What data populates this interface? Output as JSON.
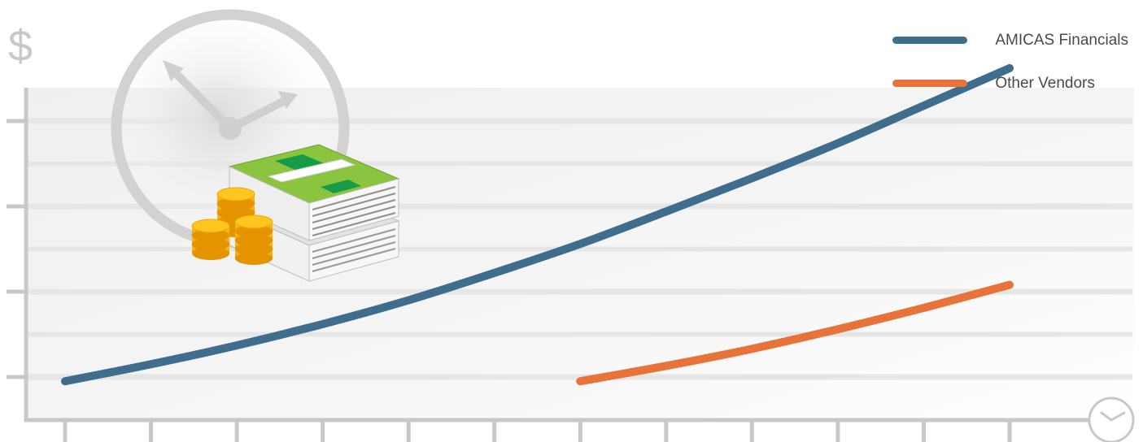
{
  "chart_data": {
    "type": "line",
    "y_axis_symbol": "$",
    "x_axis_icon": "clock-icon",
    "decoration_icons": [
      "wall-clock-icon",
      "money-stack-icon",
      "gold-coins-icon"
    ],
    "x": [
      1,
      2,
      3,
      4,
      5,
      6,
      7,
      8,
      9,
      10,
      11,
      12
    ],
    "ylim": [
      0,
      4
    ],
    "y_ticks": [
      1,
      2,
      3,
      4
    ],
    "grid": true,
    "legend_position": "top-right",
    "series": [
      {
        "name": "AMICAS Financials",
        "color": "#3e6d8e",
        "values": [
          0.95,
          1.15,
          1.37,
          1.62,
          1.9,
          2.22,
          2.56,
          2.94,
          3.33,
          3.74,
          4.18,
          4.62
        ]
      },
      {
        "name": "Other Vendors",
        "color": "#e8733a",
        "values": [
          null,
          null,
          null,
          null,
          null,
          null,
          0.95,
          1.13,
          1.33,
          1.56,
          1.81,
          2.08
        ]
      }
    ]
  }
}
